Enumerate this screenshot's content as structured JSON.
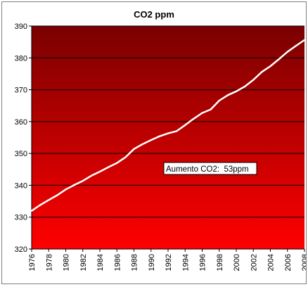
{
  "chart_data": {
    "type": "line",
    "title": "CO2 ppm",
    "xlabel": "",
    "ylabel": "",
    "ylim": [
      320,
      390
    ],
    "yticks": [
      320,
      330,
      340,
      350,
      360,
      370,
      380,
      390
    ],
    "x_tick_labels": [
      "1976",
      "1978",
      "1980",
      "1982",
      "1984",
      "1986",
      "1988",
      "1990",
      "1992",
      "1994",
      "1996",
      "1998",
      "2000",
      "2002",
      "2004",
      "2006",
      "2008"
    ],
    "grid": "horizontal",
    "legend": "none",
    "series": [
      {
        "x": [
          1976,
          1977,
          1978,
          1979,
          1980,
          1981,
          1982,
          1983,
          1984,
          1985,
          1986,
          1987,
          1988,
          1989,
          1990,
          1991,
          1992,
          1993,
          1994,
          1995,
          1996,
          1997,
          1998,
          1999,
          2000,
          2001,
          2002,
          2003,
          2004,
          2005,
          2006,
          2007,
          2008
        ],
        "values": [
          332.0,
          333.8,
          335.4,
          336.9,
          338.7,
          340.1,
          341.4,
          343.0,
          344.3,
          345.7,
          347.0,
          348.8,
          351.4,
          352.9,
          354.2,
          355.4,
          356.3,
          357.0,
          358.9,
          360.9,
          362.7,
          363.8,
          366.6,
          368.3,
          369.5,
          371.0,
          373.1,
          375.6,
          377.4,
          379.6,
          381.9,
          383.8,
          385.6
        ]
      }
    ],
    "annotation": "Aumento CO2:  53ppm",
    "colors": {
      "line": "#ffffff",
      "plot_top": "#7a0000",
      "plot_bottom": "#ff0000",
      "grid": "#000000",
      "annotation_bg": "#ffffff",
      "annotation_text": "#000000"
    }
  }
}
